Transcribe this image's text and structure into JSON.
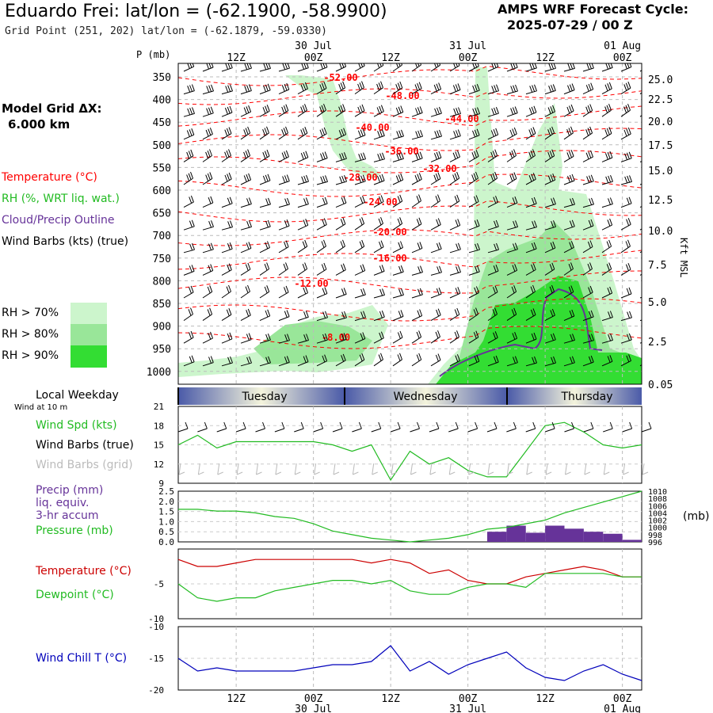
{
  "header": {
    "title": "Eduardo Frei:  lat/lon = (-62.1900, -58.9900)",
    "subtitle": "Grid Point (251, 202) lat/lon = (-62.1879, -59.0330)",
    "cycle_label": "AMPS WRF Forecast Cycle:",
    "cycle_value": "2025-07-29 / 00  Z"
  },
  "model_grid": {
    "label": "Model Grid ΔX:",
    "value": "6.000 km"
  },
  "legend": {
    "temperature": "Temperature (°C)",
    "rh": "RH (%, WRT liq. wat.)",
    "cloud": "Cloud/Precip Outline",
    "wind": "Wind Barbs (kts) (true)",
    "rh70": "RH > 70%",
    "rh80": "RH > 80%",
    "rh90": "RH > 90%"
  },
  "colors": {
    "temperature": "#ff0000",
    "rh": "#22bb22",
    "cloud": "#663399",
    "rh70": "#ccf5cc",
    "rh80": "#99e699",
    "rh90": "#33dd33",
    "wind_chill": "#0000bb",
    "grid_barbs": "#bbbbbb"
  },
  "weekday": {
    "label": "Local Weekday",
    "sublabel": "Wind at 10 m",
    "days": [
      "Tuesday",
      "Wednesday",
      "Thursday"
    ]
  },
  "axes": {
    "p_label": "P (mb)",
    "kft_label": "Kft MSL",
    "p_ticks": [
      "350",
      "400",
      "450",
      "500",
      "550",
      "600",
      "650",
      "700",
      "750",
      "800",
      "850",
      "900",
      "950",
      "1000"
    ],
    "kft_ticks": [
      "25.0",
      "22.5",
      "20.0",
      "17.5",
      "15.0",
      "12.5",
      "10.0",
      "7.5",
      "5.0",
      "2.5",
      "0.05"
    ],
    "time_ticks": [
      "12Z",
      "00Z",
      "12Z",
      "00Z",
      "12Z",
      "00Z"
    ],
    "date_labels": [
      "30 Jul",
      "31 Jul",
      "01 Aug"
    ]
  },
  "panels": {
    "wind": {
      "spd_label": "Wind Spd (kts)",
      "barbs_true": "Wind Barbs (true)",
      "barbs_grid": "Wind Barbs (grid)",
      "ticks": [
        "21",
        "18",
        "15",
        "12",
        "9"
      ]
    },
    "precip": {
      "label1": "Precip (mm)",
      "label2": "liq. equiv.",
      "label3": "3-hr accum",
      "label4": "Pressure (mb)",
      "unit": "(mb)",
      "left_ticks": [
        "2.5",
        "2.0",
        "1.5",
        "1.0",
        "0.5",
        "0.0"
      ],
      "right_ticks": [
        "1010",
        "1008",
        "1006",
        "1004",
        "1002",
        "1000",
        "998",
        "996"
      ]
    },
    "temp": {
      "t_label": "Temperature (°C)",
      "td_label": "Dewpoint (°C)",
      "ticks": [
        "-5",
        "-10"
      ]
    },
    "chill": {
      "label": "Wind Chill T (°C)",
      "ticks": [
        "-10",
        "-15",
        "-20"
      ]
    }
  },
  "chart_data": {
    "type": "line",
    "x_hours": [
      0,
      3,
      6,
      9,
      12,
      15,
      18,
      21,
      24,
      27,
      30,
      33,
      36,
      39,
      42,
      45,
      48,
      51,
      54,
      57,
      60,
      63,
      66,
      69,
      72
    ],
    "temperature_contours": [
      "-52.00",
      "-48.00",
      "-44.00",
      "-40.00",
      "-36.00",
      "-32.00",
      "-28.00",
      "-24.00",
      "-20.00",
      "-16.00",
      "-12.00",
      "-8.00"
    ],
    "wind_speed_kts": [
      15,
      16.5,
      14.5,
      15.5,
      15.5,
      15.5,
      15.5,
      15.5,
      15,
      14,
      15,
      9.5,
      14,
      12,
      13,
      11,
      10,
      10,
      14,
      18,
      18.5,
      17,
      15,
      14.5,
      15
    ],
    "precip_mm": [
      0,
      0,
      0,
      0,
      0,
      0,
      0,
      0,
      0,
      0,
      0,
      0,
      0,
      0,
      0,
      0,
      0,
      0,
      0,
      0,
      0,
      0,
      0,
      0,
      0
    ],
    "precip_bars": [
      {
        "start_hour": 48,
        "end_hour": 51,
        "value": 0.5
      },
      {
        "start_hour": 51,
        "end_hour": 54,
        "value": 0.8
      },
      {
        "start_hour": 54,
        "end_hour": 57,
        "value": 0.45
      },
      {
        "start_hour": 57,
        "end_hour": 60,
        "value": 0.8
      },
      {
        "start_hour": 60,
        "end_hour": 63,
        "value": 0.65
      },
      {
        "start_hour": 63,
        "end_hour": 66,
        "value": 0.5
      },
      {
        "start_hour": 66,
        "end_hour": 69,
        "value": 0.4
      },
      {
        "start_hour": 69,
        "end_hour": 72,
        "value": 0.1
      }
    ],
    "pressure_mb": [
      1005,
      1005,
      1004.5,
      1004.5,
      1004,
      1003,
      1002.5,
      1001,
      999,
      998,
      997,
      996.5,
      996,
      996.5,
      997,
      998,
      999.5,
      1000,
      1001,
      1002,
      1004,
      1005.5,
      1007,
      1008.5,
      1010
    ],
    "temperature_c": [
      -1.5,
      -2.5,
      -2.5,
      -2,
      -1.5,
      -1.5,
      -1.5,
      -1.5,
      -1.5,
      -1.5,
      -2,
      -1.5,
      -2,
      -3.5,
      -3,
      -4.5,
      -5,
      -5,
      -4,
      -3.5,
      -3,
      -2.5,
      -3,
      -4,
      -4
    ],
    "dewpoint_c": [
      -5,
      -7,
      -7.5,
      -7,
      -7,
      -6,
      -5.5,
      -5,
      -4.5,
      -4.5,
      -5,
      -4.5,
      -6,
      -6.5,
      -6.5,
      -5.5,
      -5,
      -5,
      -5.5,
      -3.5,
      -3.5,
      -3.5,
      -3.5,
      -4,
      -4
    ],
    "wind_chill_c": [
      -15,
      -17,
      -16.5,
      -17,
      -17,
      -17,
      -17,
      -16.5,
      -16,
      -16,
      -15.5,
      -13,
      -17,
      -15.5,
      -17.5,
      -16,
      -15,
      -14,
      -16.5,
      -18,
      -18.5,
      -17,
      -16,
      -17.5,
      -18.5
    ],
    "ylim_wind": [
      9,
      21
    ],
    "ylim_precip": [
      0,
      2.5
    ],
    "ylim_pressure": [
      996,
      1010
    ],
    "ylim_temp": [
      -10,
      0
    ],
    "ylim_chill": [
      -20,
      -10
    ]
  }
}
